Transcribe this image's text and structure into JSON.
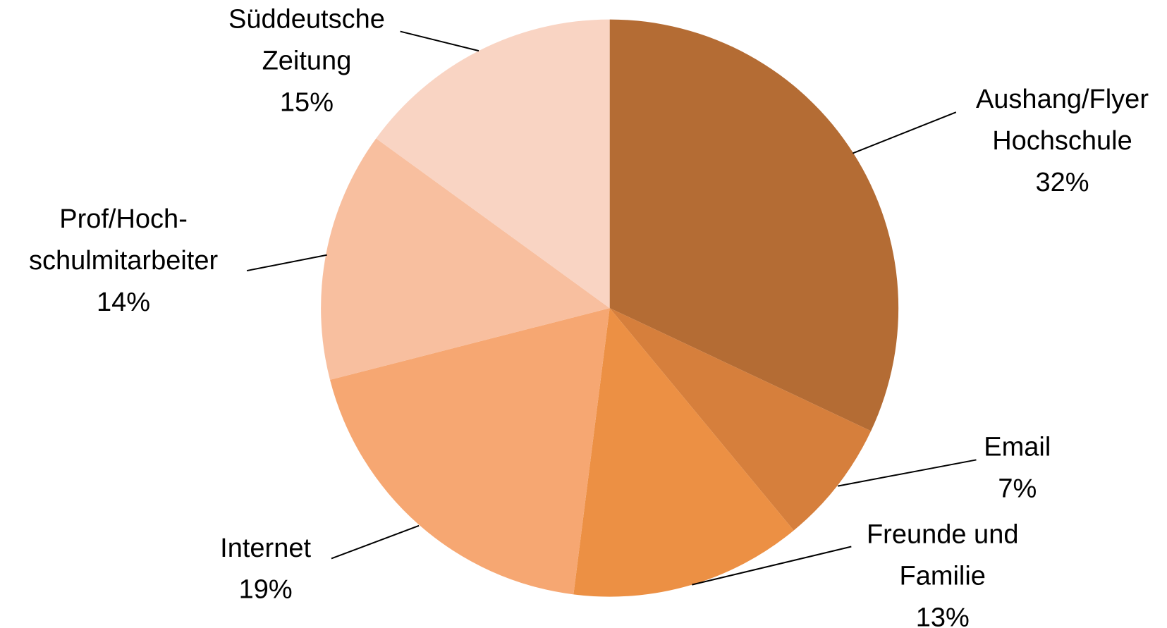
{
  "chart_data": {
    "type": "pie",
    "categories": [
      "Aushang/Flyer\nHochschule",
      "Email",
      "Freunde und\nFamilie",
      "Internet",
      "Prof/Hoch-\nschulmitarbeiter",
      "Süddeutsche\nZeitung"
    ],
    "values": [
      32,
      7,
      13,
      19,
      14,
      15
    ],
    "value_labels": [
      "32%",
      "7%",
      "13%",
      "19%",
      "14%",
      "15%"
    ],
    "colors": [
      "#b46c34",
      "#d67f3c",
      "#ec9044",
      "#f6a772",
      "#f8bf9f",
      "#f9d4c3"
    ]
  }
}
